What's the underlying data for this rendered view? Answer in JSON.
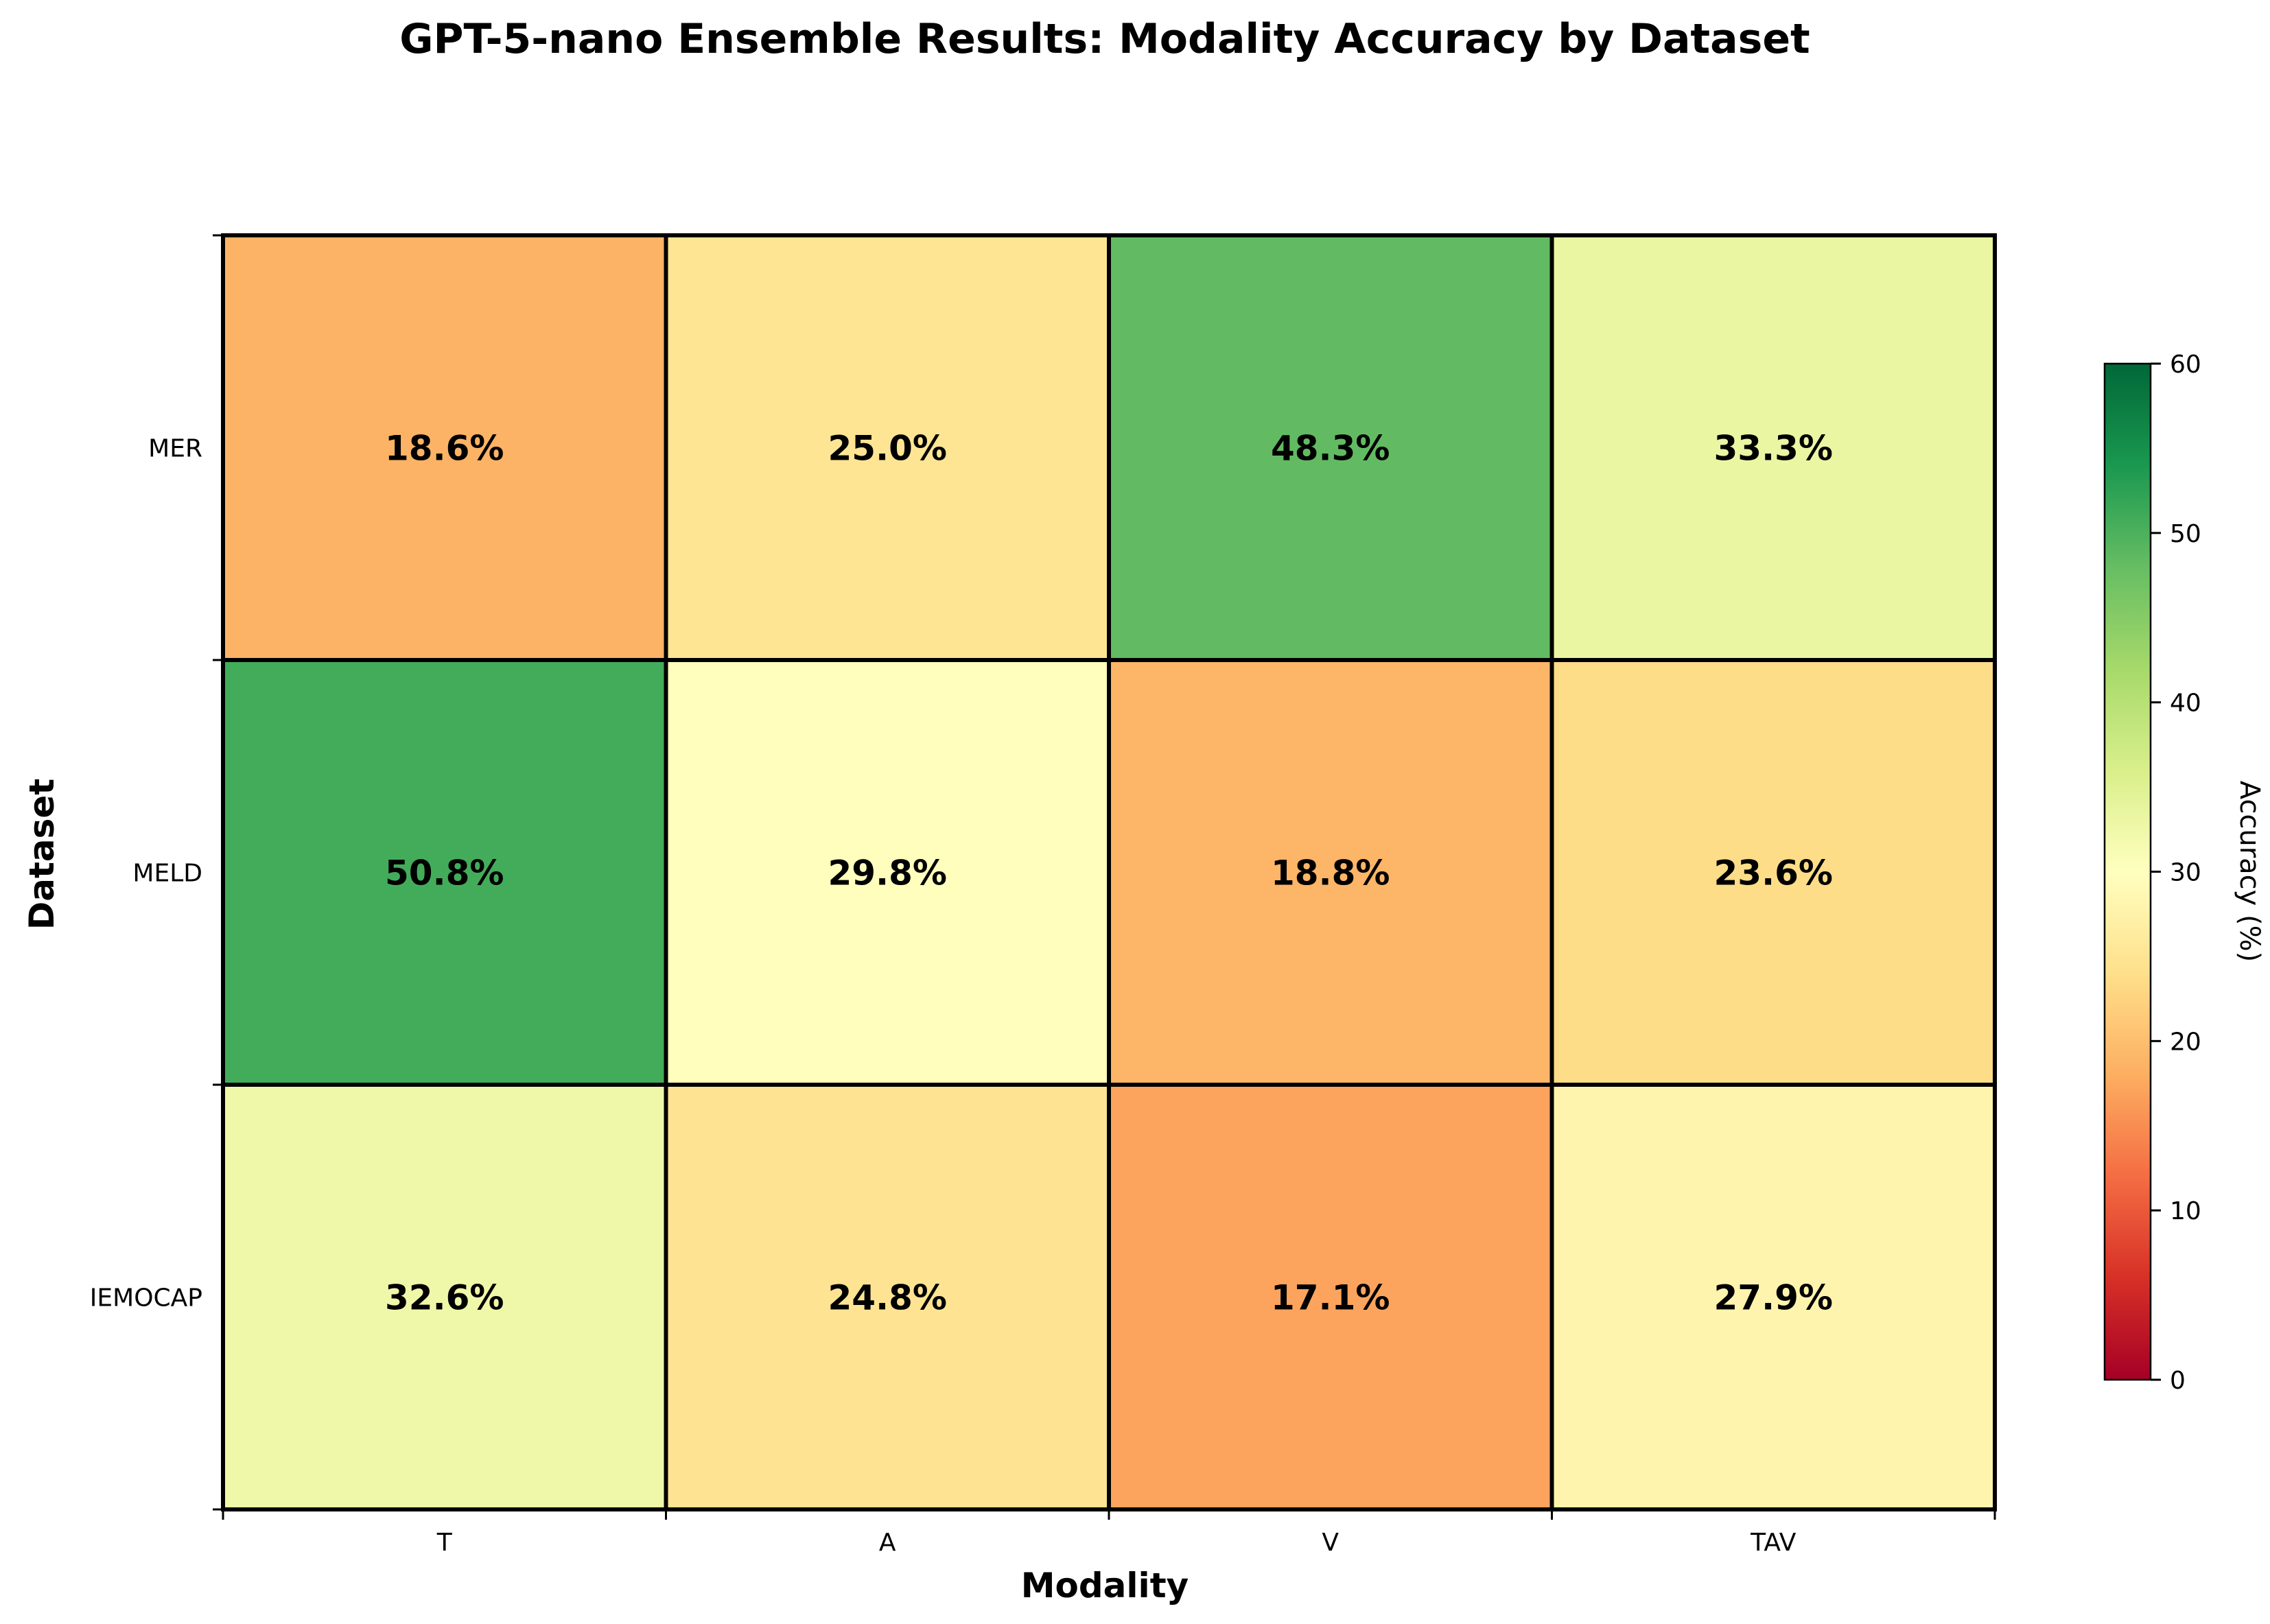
{
  "chart_data": {
    "type": "heatmap",
    "title": "GPT-5-nano Ensemble Results: Modality Accuracy by Dataset",
    "xlabel": "Modality",
    "ylabel": "Dataset",
    "x_categories": [
      "T",
      "A",
      "V",
      "TAV"
    ],
    "y_categories": [
      "MER",
      "MELD",
      "IEMOCAP"
    ],
    "values": [
      [
        18.6,
        25.0,
        48.3,
        33.3
      ],
      [
        50.8,
        29.8,
        18.8,
        23.6
      ],
      [
        32.6,
        24.8,
        17.1,
        27.9
      ]
    ],
    "cell_labels": [
      [
        "18.6%",
        "25.0%",
        "48.3%",
        "33.3%"
      ],
      [
        "50.8%",
        "29.8%",
        "18.8%",
        "23.6%"
      ],
      [
        "32.6%",
        "24.8%",
        "17.1%",
        "27.9%"
      ]
    ],
    "colorbar": {
      "label": "Accuracy (%)",
      "range": [
        0,
        60
      ],
      "ticks": [
        "0",
        "10",
        "20",
        "30",
        "40",
        "50",
        "60"
      ],
      "colormap": "RdYlGn"
    }
  }
}
